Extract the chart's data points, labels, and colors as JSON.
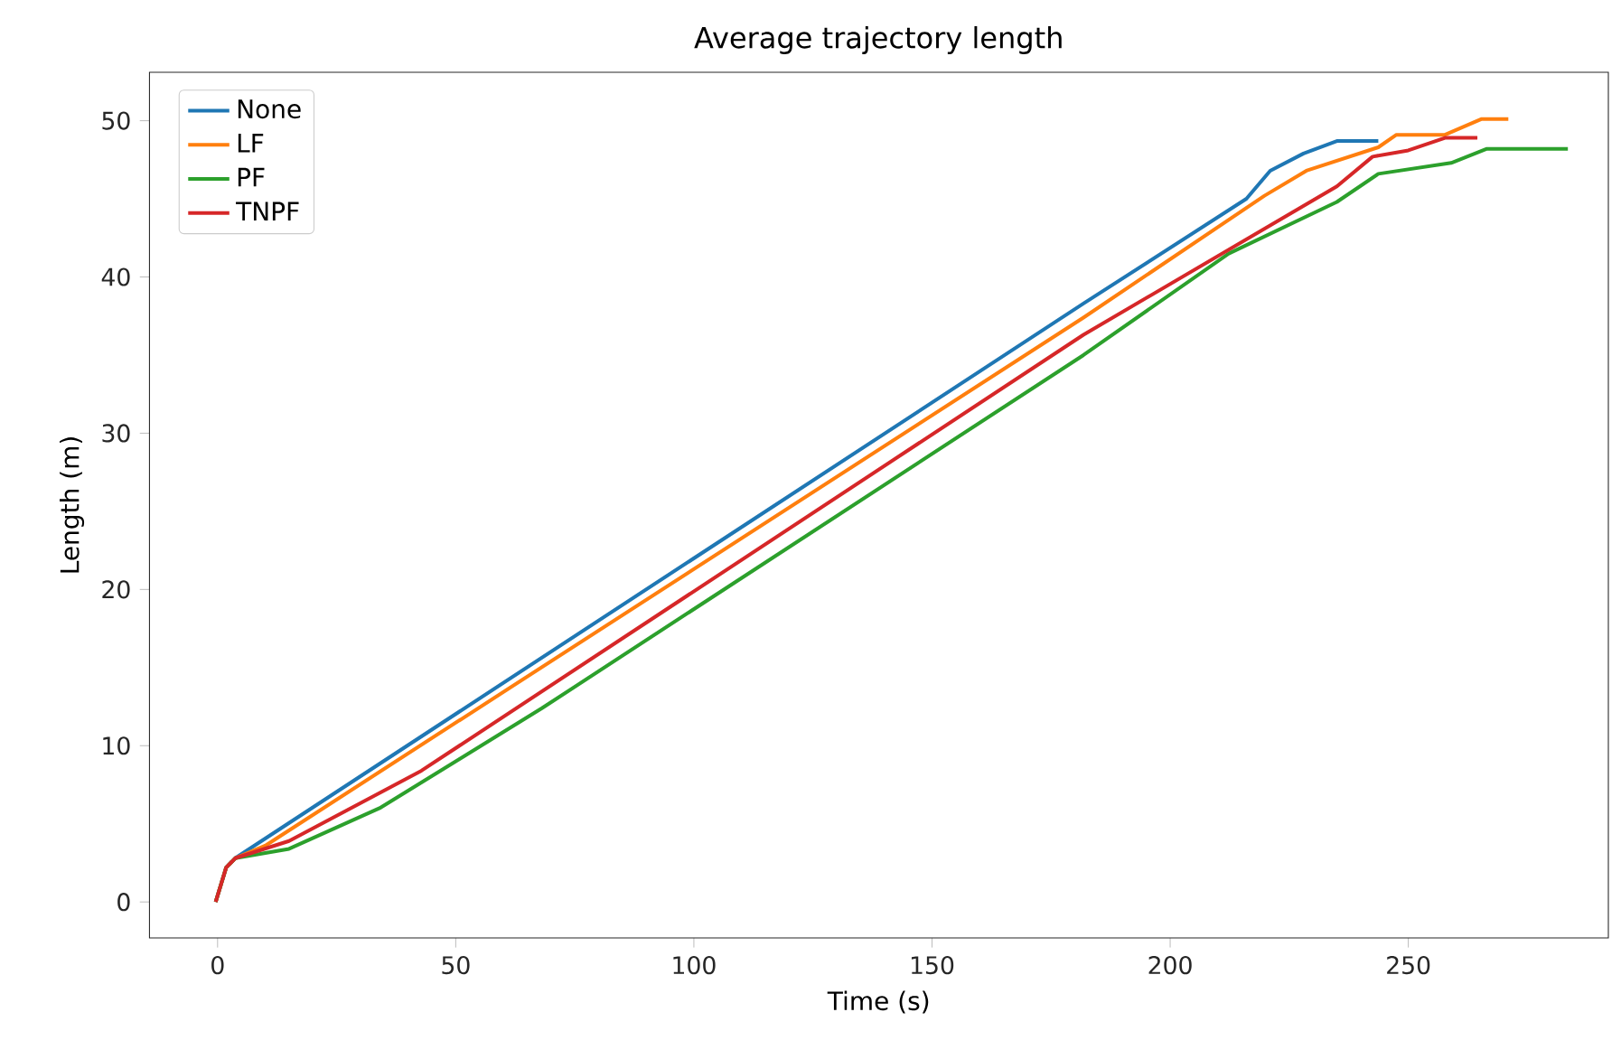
{
  "chart_data": {
    "type": "line",
    "title": "Average trajectory length",
    "xlabel": "Time (s)",
    "ylabel": "Length (m)",
    "xlim": [
      -14.3,
      292
    ],
    "ylim": [
      -2.3,
      53.1
    ],
    "xticks": [
      0,
      50,
      100,
      150,
      200,
      250
    ],
    "yticks": [
      0,
      10,
      20,
      30,
      40,
      50
    ],
    "grid": false,
    "legend": "top left",
    "line_style": "solid",
    "marker": "none",
    "series": [
      {
        "name": "None",
        "color": "#1f77b4",
        "x": [
          -0.4,
          1.8,
          3.7,
          181.8,
          216,
          221,
          228,
          235,
          243.7
        ],
        "values": [
          0,
          2.2,
          2.8,
          38.3,
          45.0,
          46.8,
          47.9,
          48.7,
          48.7
        ]
      },
      {
        "name": "LF",
        "color": "#ff7f0e",
        "x": [
          -0.4,
          1.8,
          3.7,
          10,
          181.8,
          219.8,
          228.6,
          243.7,
          247.5,
          257.7,
          265.3,
          271
        ],
        "values": [
          0,
          2.2,
          2.8,
          3.6,
          37.4,
          45.2,
          46.8,
          48.3,
          49.1,
          49.1,
          50.1,
          50.1
        ]
      },
      {
        "name": "PF",
        "color": "#2ca02c",
        "x": [
          -0.4,
          1.8,
          3.7,
          15,
          34,
          68.1,
          181.8,
          212.3,
          235,
          243.7,
          259,
          266.5,
          283.5
        ],
        "values": [
          0,
          2.2,
          2.8,
          3.4,
          6.0,
          12.4,
          35.0,
          41.5,
          44.8,
          46.6,
          47.3,
          48.2,
          48.2
        ]
      },
      {
        "name": "TNPF",
        "color": "#d62728",
        "x": [
          -0.4,
          1.8,
          3.7,
          15,
          42.8,
          181.8,
          235,
          242.5,
          250,
          257.7,
          264.5
        ],
        "values": [
          0,
          2.2,
          2.8,
          3.9,
          8.4,
          36.3,
          45.8,
          47.7,
          48.1,
          48.9,
          48.9
        ]
      }
    ]
  }
}
